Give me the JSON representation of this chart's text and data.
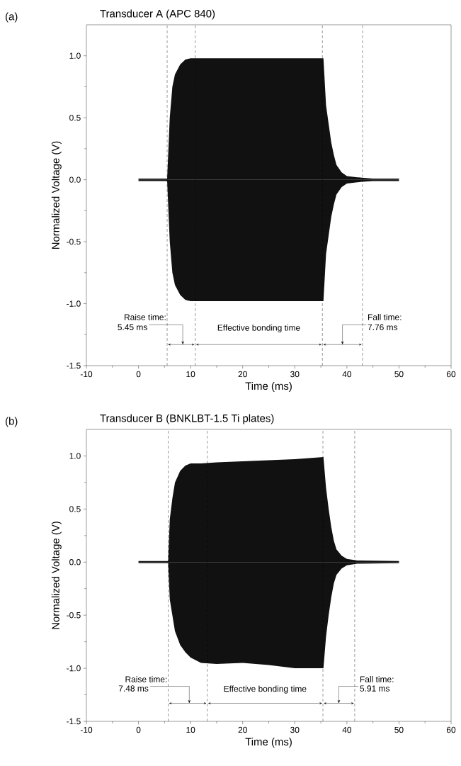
{
  "chart_data": [
    {
      "type": "area",
      "title": "Transducer A (APC 840)",
      "xlabel": "Time (ms)",
      "ylabel": "Normalized Voltage (V)",
      "x": [
        0,
        5.5,
        6,
        6.5,
        7,
        8,
        9,
        10,
        20,
        30,
        35.5,
        36,
        36.5,
        37,
        37.5,
        38,
        39,
        40,
        42,
        45,
        50
      ],
      "series": [
        {
          "color": "#111111",
          "values": [
            0.01,
            0.01,
            0.5,
            0.75,
            0.85,
            0.93,
            0.97,
            0.98,
            0.98,
            0.98,
            0.98,
            0.6,
            0.45,
            0.3,
            0.2,
            0.12,
            0.06,
            0.03,
            0.02,
            0.01,
            0.01
          ]
        },
        {
          "color": "#111111",
          "values": [
            -0.01,
            -0.01,
            -0.5,
            -0.75,
            -0.85,
            -0.93,
            -0.97,
            -0.98,
            -0.98,
            -0.98,
            -0.98,
            -0.6,
            -0.45,
            -0.3,
            -0.2,
            -0.12,
            -0.06,
            -0.03,
            -0.02,
            -0.01,
            -0.01
          ]
        }
      ],
      "xlim": [
        -10,
        60
      ],
      "ylim": [
        -1.5,
        1.25
      ],
      "xticks": [
        -10,
        0,
        10,
        20,
        30,
        40,
        50,
        60
      ],
      "yticks": [
        -1.5,
        {
          "value": -1,
          "label": "-1.0"
        },
        -0.5,
        {
          "value": 0,
          "label": "0.0"
        },
        0.5,
        {
          "value": 1,
          "label": "1.0"
        }
      ],
      "ref_lines": [
        {
          "axis": "x",
          "value": 5.5,
          "line_style": "dashed",
          "color": "#000000"
        },
        {
          "axis": "x",
          "value": 10.9,
          "line_style": "dashed",
          "color": "#000000"
        },
        {
          "axis": "x",
          "value": 35.3,
          "line_style": "dashed",
          "color": "#000000"
        },
        {
          "axis": "x",
          "value": 43.0,
          "line_style": "dashed",
          "color": "#000000"
        }
      ],
      "annotations": [
        "(a)",
        "Raise time:",
        "5.45 ms",
        "Effective bonding time",
        "Fall time:",
        "7.76 ms"
      ]
    },
    {
      "type": "area",
      "title": "Transducer B (BNKLBT-1.5 Ti plates)",
      "xlabel": "Time (ms)",
      "ylabel": "Normalized Voltage (V)",
      "x": [
        0,
        5.7,
        6,
        6.5,
        7,
        8,
        9,
        10,
        12,
        15,
        20,
        25,
        30,
        35.5,
        36,
        36.5,
        37,
        37.5,
        38,
        39,
        40,
        42,
        50
      ],
      "series": [
        {
          "color": "#111111",
          "values": [
            0.01,
            0.01,
            0.4,
            0.6,
            0.75,
            0.86,
            0.91,
            0.93,
            0.93,
            0.94,
            0.95,
            0.96,
            0.97,
            0.99,
            0.7,
            0.5,
            0.33,
            0.2,
            0.12,
            0.06,
            0.03,
            0.015,
            0.01
          ]
        },
        {
          "color": "#111111",
          "values": [
            -0.01,
            -0.01,
            -0.35,
            -0.5,
            -0.65,
            -0.78,
            -0.85,
            -0.9,
            -0.95,
            -0.96,
            -0.95,
            -0.97,
            -1.0,
            -1.0,
            -0.7,
            -0.5,
            -0.33,
            -0.2,
            -0.12,
            -0.06,
            -0.03,
            -0.015,
            -0.01
          ]
        }
      ],
      "xlim": [
        -10,
        60
      ],
      "ylim": [
        -1.5,
        1.25
      ],
      "xticks": [
        -10,
        0,
        10,
        20,
        30,
        40,
        50,
        60
      ],
      "yticks": [
        -1.5,
        {
          "value": -1,
          "label": "-1.0"
        },
        -0.5,
        {
          "value": 0,
          "label": "0.0"
        },
        0.5,
        {
          "value": 1,
          "label": "1.0"
        }
      ],
      "ref_lines": [
        {
          "axis": "x",
          "value": 5.7,
          "line_style": "dashed",
          "color": "#000000"
        },
        {
          "axis": "x",
          "value": 13.2,
          "line_style": "dashed",
          "color": "#000000"
        },
        {
          "axis": "x",
          "value": 35.4,
          "line_style": "dashed",
          "color": "#000000"
        },
        {
          "axis": "x",
          "value": 41.5,
          "line_style": "dashed",
          "color": "#000000"
        }
      ],
      "annotations": [
        "(b)",
        "Raise time:",
        "7.48 ms",
        "Effective bonding time",
        "Fall time:",
        "5.91 ms"
      ]
    }
  ]
}
